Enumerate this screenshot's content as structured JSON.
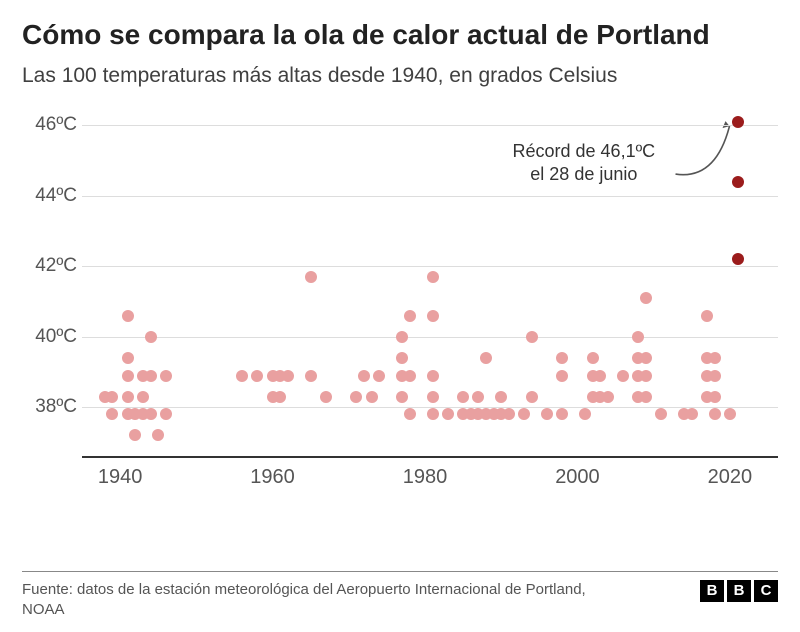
{
  "title": "Cómo se compara la ola de calor actual de Portland",
  "subtitle": "Las 100 temperaturas más altas desde 1940, en grados Celsius",
  "source": "Fuente: datos de la estación meteorológica del Aeropuerto Internacional de Portland, NOAA",
  "logo": {
    "a": "B",
    "b": "B",
    "c": "C"
  },
  "annotation": {
    "line1": "Récord de 46,1ºC",
    "line2": "el 28 de junio"
  },
  "chart": {
    "type": "scatter",
    "background_color": "#ffffff",
    "grid_color": "#dddddd",
    "axis_color": "#333333",
    "text_color": "#555555",
    "x": {
      "min": 1935,
      "max": 2025,
      "ticks": [
        1940,
        1960,
        1980,
        2000,
        2020
      ]
    },
    "y": {
      "min": 36.8,
      "max": 46.5,
      "ticks": [
        38,
        40,
        42,
        44,
        46
      ],
      "suffix": "ºC"
    },
    "dot_radius": 6,
    "normal_color": "#e9a0a0",
    "highlight_color": "#9b1c1c",
    "points_normal": [
      [
        1938,
        38.3
      ],
      [
        1939,
        37.8
      ],
      [
        1939,
        38.3
      ],
      [
        1941,
        37.8
      ],
      [
        1941,
        38.3
      ],
      [
        1941,
        38.9
      ],
      [
        1941,
        39.4
      ],
      [
        1941,
        40.6
      ],
      [
        1942,
        37.8
      ],
      [
        1942,
        37.2
      ],
      [
        1943,
        37.8
      ],
      [
        1943,
        38.3
      ],
      [
        1943,
        38.9
      ],
      [
        1944,
        37.8
      ],
      [
        1944,
        38.9
      ],
      [
        1944,
        40.0
      ],
      [
        1945,
        37.2
      ],
      [
        1946,
        37.8
      ],
      [
        1946,
        38.9
      ],
      [
        1956,
        38.9
      ],
      [
        1958,
        38.9
      ],
      [
        1960,
        38.3
      ],
      [
        1960,
        38.9
      ],
      [
        1961,
        38.3
      ],
      [
        1961,
        38.9
      ],
      [
        1962,
        38.9
      ],
      [
        1965,
        38.9
      ],
      [
        1965,
        41.7
      ],
      [
        1967,
        38.3
      ],
      [
        1971,
        38.3
      ],
      [
        1972,
        38.9
      ],
      [
        1973,
        38.3
      ],
      [
        1974,
        38.9
      ],
      [
        1977,
        38.3
      ],
      [
        1977,
        38.9
      ],
      [
        1977,
        39.4
      ],
      [
        1977,
        40.0
      ],
      [
        1978,
        37.8
      ],
      [
        1978,
        38.9
      ],
      [
        1978,
        40.6
      ],
      [
        1981,
        37.8
      ],
      [
        1981,
        38.3
      ],
      [
        1981,
        38.9
      ],
      [
        1981,
        40.6
      ],
      [
        1981,
        41.7
      ],
      [
        1983,
        37.8
      ],
      [
        1985,
        37.8
      ],
      [
        1985,
        38.3
      ],
      [
        1986,
        37.8
      ],
      [
        1987,
        37.8
      ],
      [
        1987,
        38.3
      ],
      [
        1988,
        37.8
      ],
      [
        1988,
        39.4
      ],
      [
        1989,
        37.8
      ],
      [
        1990,
        37.8
      ],
      [
        1990,
        38.3
      ],
      [
        1991,
        37.8
      ],
      [
        1993,
        37.8
      ],
      [
        1994,
        38.3
      ],
      [
        1994,
        40.0
      ],
      [
        1996,
        37.8
      ],
      [
        1998,
        37.8
      ],
      [
        1998,
        38.9
      ],
      [
        1998,
        39.4
      ],
      [
        2001,
        37.8
      ],
      [
        2002,
        38.3
      ],
      [
        2002,
        38.9
      ],
      [
        2002,
        39.4
      ],
      [
        2003,
        38.3
      ],
      [
        2003,
        38.9
      ],
      [
        2004,
        38.3
      ],
      [
        2006,
        38.9
      ],
      [
        2008,
        38.3
      ],
      [
        2008,
        38.9
      ],
      [
        2008,
        39.4
      ],
      [
        2008,
        40.0
      ],
      [
        2009,
        38.3
      ],
      [
        2009,
        38.9
      ],
      [
        2009,
        39.4
      ],
      [
        2009,
        41.1
      ],
      [
        2011,
        37.8
      ],
      [
        2014,
        37.8
      ],
      [
        2015,
        37.8
      ],
      [
        2017,
        38.3
      ],
      [
        2017,
        38.9
      ],
      [
        2017,
        39.4
      ],
      [
        2017,
        40.6
      ],
      [
        2018,
        37.8
      ],
      [
        2018,
        38.3
      ],
      [
        2018,
        38.9
      ],
      [
        2018,
        39.4
      ],
      [
        2020,
        37.8
      ]
    ],
    "points_highlight": [
      [
        2021,
        42.2
      ],
      [
        2021,
        44.4
      ],
      [
        2021,
        46.1
      ]
    ]
  }
}
